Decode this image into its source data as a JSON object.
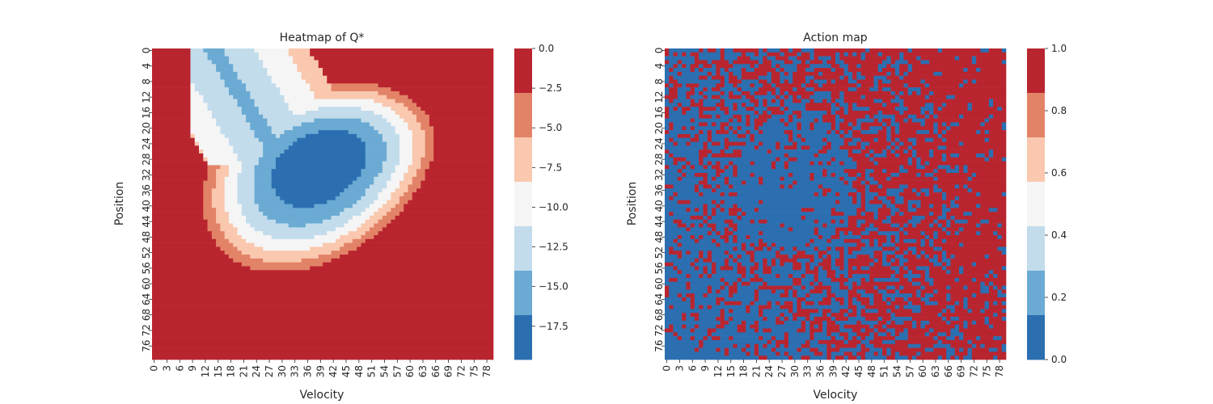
{
  "chart_data": [
    {
      "type": "heatmap",
      "title": "Heatmap of Q*",
      "xlabel": "Velocity",
      "ylabel": "Position",
      "grid_size": 80,
      "x_ticks": [
        "0",
        "3",
        "6",
        "9",
        "12",
        "15",
        "18",
        "21",
        "24",
        "27",
        "30",
        "33",
        "36",
        "39",
        "42",
        "45",
        "48",
        "51",
        "54",
        "57",
        "60",
        "63",
        "66",
        "69",
        "72",
        "75",
        "78"
      ],
      "y_ticks": [
        "0",
        "4",
        "8",
        "12",
        "16",
        "20",
        "24",
        "28",
        "32",
        "36",
        "40",
        "44",
        "48",
        "52",
        "56",
        "60",
        "64",
        "68",
        "72",
        "76"
      ],
      "colorbar": {
        "range": [
          -19.6,
          0.0
        ],
        "ticks": [
          "0.0",
          "−2.5",
          "−5.0",
          "−7.5",
          "−10.0",
          "−12.5",
          "−15.0",
          "−17.5"
        ],
        "tick_values": [
          0.0,
          -2.5,
          -5.0,
          -7.5,
          -10.0,
          -12.5,
          -15.0,
          -17.5
        ],
        "levels": 7
      },
      "value_model": {
        "background_value": -0.5,
        "min_value": -19.6,
        "basin_center_velocity": 39,
        "basin_center_position": 29
      }
    },
    {
      "type": "heatmap",
      "title": "Action map",
      "xlabel": "Velocity",
      "ylabel": "Position",
      "grid_size": 80,
      "x_ticks": [
        "0",
        "3",
        "6",
        "9",
        "12",
        "15",
        "18",
        "21",
        "24",
        "27",
        "30",
        "33",
        "36",
        "39",
        "42",
        "45",
        "48",
        "51",
        "54",
        "57",
        "60",
        "63",
        "66",
        "69",
        "72",
        "75",
        "78"
      ],
      "y_ticks": [
        "0",
        "4",
        "8",
        "12",
        "16",
        "20",
        "24",
        "28",
        "32",
        "36",
        "40",
        "44",
        "48",
        "52",
        "56",
        "60",
        "64",
        "68",
        "72",
        "76"
      ],
      "colorbar": {
        "range": [
          0.0,
          1.0
        ],
        "ticks": [
          "1.0",
          "0.8",
          "0.6",
          "0.4",
          "0.2",
          "0.0"
        ],
        "tick_values": [
          1.0,
          0.8,
          0.6,
          0.4,
          0.2,
          0.0
        ],
        "levels": 7
      },
      "values_binary": [
        0,
        1
      ]
    }
  ],
  "palette": [
    "#2b6fb1",
    "#6aaad3",
    "#c2dcec",
    "#f5f5f5",
    "#fac8ae",
    "#e28368",
    "#b9252f"
  ]
}
